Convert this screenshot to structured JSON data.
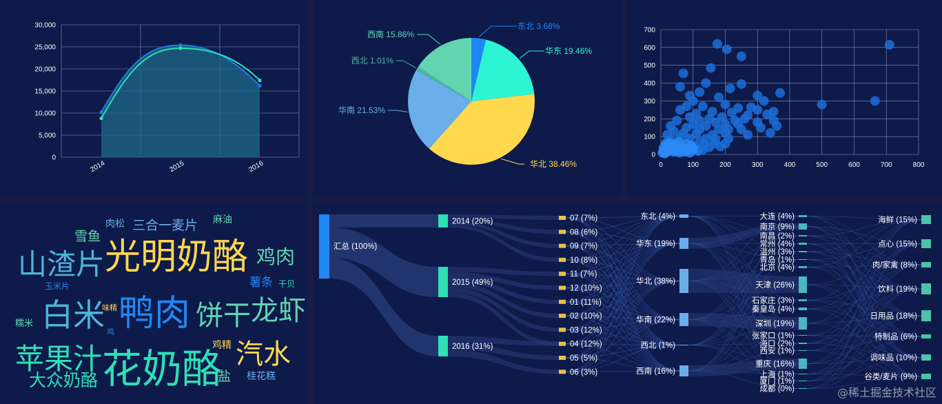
{
  "watermark": "@稀土掘金技术社区",
  "chart_data": [
    {
      "type": "area",
      "categories": [
        "2014",
        "2015",
        "2016"
      ],
      "ylim": [
        0,
        30000
      ],
      "yticks": [
        "0",
        "5,000",
        "10,000",
        "15,000",
        "20,000",
        "25,000",
        "30,000"
      ],
      "series": [
        {
          "values": [
            10200,
            25400,
            16200
          ],
          "color": "#1e7fe0"
        },
        {
          "values": [
            8800,
            24700,
            17400
          ],
          "color": "#2de0b6"
        }
      ],
      "grid": true
    },
    {
      "type": "pie",
      "slices": [
        {
          "label": "东北 3.68%",
          "value": 3.68,
          "color": "#1e88f5"
        },
        {
          "label": "华东 19.46%",
          "value": 19.46,
          "color": "#2cf5d4"
        },
        {
          "label": "华北 38.46%",
          "value": 38.46,
          "color": "#ffd84d"
        },
        {
          "label": "华南 21.53%",
          "value": 21.53,
          "color": "#6aaeea"
        },
        {
          "label": "西北 1.01%",
          "value": 1.01,
          "color": "#4bb5a8"
        },
        {
          "label": "西南 15.86%",
          "value": 15.86,
          "color": "#62d4b0"
        }
      ]
    },
    {
      "type": "scatter",
      "xlim": [
        0,
        800
      ],
      "ylim": [
        0,
        700
      ],
      "xticks": [
        "0",
        "100",
        "200",
        "300",
        "400",
        "500",
        "600",
        "700",
        "800"
      ],
      "yticks": [
        "0",
        "100",
        "200",
        "300",
        "400",
        "500",
        "600",
        "700"
      ],
      "color": "#1b6fd8",
      "grid": true,
      "points": [
        [
          710,
          615
        ],
        [
          665,
          300
        ],
        [
          500,
          280
        ],
        [
          175,
          620
        ],
        [
          205,
          590
        ],
        [
          250,
          550
        ],
        [
          155,
          485
        ],
        [
          70,
          455
        ],
        [
          140,
          400
        ],
        [
          250,
          395
        ],
        [
          215,
          370
        ],
        [
          120,
          350
        ],
        [
          370,
          345
        ],
        [
          60,
          380
        ],
        [
          90,
          330
        ],
        [
          300,
          330
        ],
        [
          180,
          320
        ],
        [
          320,
          300
        ],
        [
          280,
          265
        ],
        [
          240,
          260
        ],
        [
          130,
          270
        ],
        [
          100,
          300
        ],
        [
          200,
          280
        ],
        [
          350,
          240
        ],
        [
          160,
          240
        ],
        [
          220,
          235
        ],
        [
          60,
          250
        ],
        [
          300,
          250
        ],
        [
          80,
          270
        ],
        [
          330,
          225
        ],
        [
          110,
          230
        ],
        [
          270,
          220
        ],
        [
          190,
          210
        ],
        [
          350,
          190
        ],
        [
          360,
          160
        ],
        [
          260,
          200
        ],
        [
          150,
          200
        ],
        [
          230,
          190
        ],
        [
          300,
          180
        ],
        [
          310,
          150
        ],
        [
          200,
          170
        ],
        [
          120,
          190
        ],
        [
          90,
          210
        ],
        [
          170,
          180
        ],
        [
          240,
          170
        ],
        [
          340,
          120
        ],
        [
          210,
          140
        ],
        [
          140,
          160
        ],
        [
          100,
          170
        ],
        [
          50,
          190
        ],
        [
          30,
          160
        ],
        [
          250,
          140
        ],
        [
          180,
          140
        ],
        [
          120,
          140
        ],
        [
          80,
          150
        ],
        [
          40,
          130
        ],
        [
          200,
          120
        ],
        [
          160,
          110
        ],
        [
          110,
          115
        ],
        [
          70,
          120
        ],
        [
          20,
          110
        ],
        [
          270,
          110
        ],
        [
          140,
          90
        ],
        [
          210,
          90
        ],
        [
          170,
          85
        ],
        [
          90,
          90
        ],
        [
          60,
          95
        ],
        [
          30,
          80
        ],
        [
          15,
          60
        ],
        [
          25,
          40
        ],
        [
          35,
          30
        ],
        [
          45,
          55
        ],
        [
          55,
          70
        ],
        [
          65,
          45
        ],
        [
          80,
          60
        ],
        [
          95,
          50
        ],
        [
          105,
          40
        ],
        [
          120,
          70
        ],
        [
          135,
          55
        ],
        [
          150,
          40
        ],
        [
          165,
          60
        ],
        [
          185,
          45
        ],
        [
          200,
          60
        ],
        [
          10,
          20
        ],
        [
          20,
          15
        ],
        [
          30,
          25
        ],
        [
          40,
          15
        ],
        [
          50,
          30
        ],
        [
          60,
          20
        ],
        [
          70,
          35
        ],
        [
          85,
          25
        ],
        [
          100,
          30
        ],
        [
          115,
          20
        ],
        [
          130,
          25
        ],
        [
          5,
          10
        ],
        [
          12,
          5
        ],
        [
          8,
          35
        ],
        [
          18,
          50
        ],
        [
          28,
          65
        ],
        [
          38,
          45
        ],
        [
          48,
          20
        ],
        [
          58,
          10
        ],
        [
          75,
          15
        ],
        [
          90,
          10
        ]
      ]
    },
    {
      "type": "wordcloud",
      "words": [
        {
          "text": "光明奶酪",
          "color": "#ffd84d"
        },
        {
          "text": "花奶酪",
          "color": "#2de0b6"
        },
        {
          "text": "鸭肉",
          "color": "#1e88f5"
        },
        {
          "text": "白米",
          "color": "#4bb5d6"
        },
        {
          "text": "山渣片",
          "color": "#4bb5d6"
        },
        {
          "text": "饼干",
          "color": "#62d4b0"
        },
        {
          "text": "龙虾",
          "color": "#62d4b0"
        },
        {
          "text": "苹果汁",
          "color": "#2de0b6"
        },
        {
          "text": "汽水",
          "color": "#ffd84d"
        },
        {
          "text": "鸡肉",
          "color": "#62d4b0"
        },
        {
          "text": "大众奶酪",
          "color": "#2de0b6"
        },
        {
          "text": "三合一麦片",
          "color": "#6aaeea"
        },
        {
          "text": "雪鱼",
          "color": "#62d4b0"
        },
        {
          "text": "薯条",
          "color": "#1e88f5"
        },
        {
          "text": "肉松",
          "color": "#6aaeea"
        },
        {
          "text": "麻油",
          "color": "#62d4b0"
        },
        {
          "text": "鸡精",
          "color": "#ffd84d"
        },
        {
          "text": "盐",
          "color": "#62d4b0"
        },
        {
          "text": "桂花糕",
          "color": "#6aaeea"
        },
        {
          "text": "玉米片",
          "color": "#1e88f5"
        },
        {
          "text": "干贝",
          "color": "#2de0b6"
        },
        {
          "text": "糯米",
          "color": "#62d4b0"
        },
        {
          "text": "味精",
          "color": "#ffd84d"
        },
        {
          "text": "鸡",
          "color": "#1e88f5"
        }
      ]
    },
    {
      "type": "sankey",
      "columns": [
        {
          "color": "#1e88f5",
          "nodes": [
            {
              "label": "汇总 (100%)",
              "value": 100
            }
          ]
        },
        {
          "color": "#2de0b6",
          "nodes": [
            {
              "label": "2014 (20%)",
              "value": 20
            },
            {
              "label": "2015 (49%)",
              "value": 49
            },
            {
              "label": "2016 (31%)",
              "value": 31
            }
          ]
        },
        {
          "color": "#e6c24a",
          "nodes": [
            {
              "label": "07 (7%)",
              "value": 7
            },
            {
              "label": "08 (6%)",
              "value": 6
            },
            {
              "label": "09 (7%)",
              "value": 7
            },
            {
              "label": "10 (8%)",
              "value": 8
            },
            {
              "label": "11 (7%)",
              "value": 7
            },
            {
              "label": "12 (10%)",
              "value": 10
            },
            {
              "label": "01 (11%)",
              "value": 11
            },
            {
              "label": "02 (10%)",
              "value": 10
            },
            {
              "label": "03 (12%)",
              "value": 12
            },
            {
              "label": "04 (12%)",
              "value": 12
            },
            {
              "label": "05 (5%)",
              "value": 5
            },
            {
              "label": "06 (3%)",
              "value": 3
            }
          ]
        },
        {
          "color": "#6aaeea",
          "nodes": [
            {
              "label": "东北 (4%)",
              "value": 4
            },
            {
              "label": "华东 (19%)",
              "value": 19
            },
            {
              "label": "华北 (38%)",
              "value": 38
            },
            {
              "label": "华南 (22%)",
              "value": 22
            },
            {
              "label": "西北 (1%)",
              "value": 1
            },
            {
              "label": "西南 (16%)",
              "value": 16
            }
          ]
        },
        {
          "color": "#4bb5c0",
          "nodes": [
            {
              "label": "大连 (4%)",
              "value": 4
            },
            {
              "label": "南京 (9%)",
              "value": 9
            },
            {
              "label": "南昌 (2%)",
              "value": 2
            },
            {
              "label": "常州 (4%)",
              "value": 4
            },
            {
              "label": "温州 (3%)",
              "value": 3
            },
            {
              "label": "青岛 (1%)",
              "value": 1
            },
            {
              "label": "北京 (4%)",
              "value": 4
            },
            {
              "label": "天津 (26%)",
              "value": 26
            },
            {
              "label": "石家庄 (3%)",
              "value": 3
            },
            {
              "label": "秦皇岛 (4%)",
              "value": 4
            },
            {
              "label": "深圳 (19%)",
              "value": 19
            },
            {
              "label": "张家口 (1%)",
              "value": 1
            },
            {
              "label": "海口 (2%)",
              "value": 2
            },
            {
              "label": "西安 (1%)",
              "value": 1
            },
            {
              "label": "重庆 (16%)",
              "value": 16
            },
            {
              "label": "上海 (1%)",
              "value": 1
            },
            {
              "label": "厦门 (1%)",
              "value": 1
            },
            {
              "label": "成都 (0%)",
              "value": 0
            }
          ]
        },
        {
          "color": "#4bc4a8",
          "nodes": [
            {
              "label": "海鲜 (15%)",
              "value": 15
            },
            {
              "label": "点心 (15%)",
              "value": 15
            },
            {
              "label": "肉/家禽 (8%)",
              "value": 8
            },
            {
              "label": "饮料 (19%)",
              "value": 19
            },
            {
              "label": "日用品 (18%)",
              "value": 18
            },
            {
              "label": "特制品 (6%)",
              "value": 6
            },
            {
              "label": "调味品 (10%)",
              "value": 10
            },
            {
              "label": "谷类/麦片 (9%)",
              "value": 9
            }
          ]
        }
      ]
    }
  ]
}
